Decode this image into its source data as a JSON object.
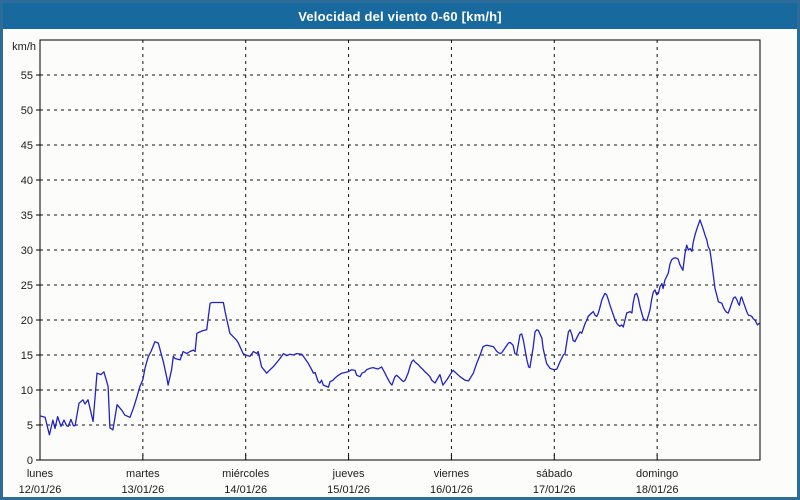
{
  "window": {
    "title": "Velocidad del viento 0-60 [km/h]"
  },
  "colors": {
    "titlebar_bg": "#17699e",
    "title_text": "#ffffff",
    "frame_border": "#2d6b98",
    "window_bg": "#fcfdfa",
    "grid_color": "#111111",
    "axis_color": "#000000",
    "label_color": "#1c1c1c",
    "line_color": "#2121c8"
  },
  "chart_data": {
    "type": "line",
    "title": "Velocidad del viento 0-60 [km/h]",
    "y_unit_label": "km/h",
    "ylim": [
      0,
      60
    ],
    "yticks": [
      0,
      5,
      10,
      15,
      20,
      25,
      30,
      35,
      40,
      45,
      50,
      55
    ],
    "grid": "dashed",
    "legend": "none",
    "x_axis": {
      "total_hours": 168,
      "day_span_hours": 24,
      "days": [
        {
          "name": "lunes",
          "date": "12/01/26"
        },
        {
          "name": "martes",
          "date": "13/01/26"
        },
        {
          "name": "miércoles",
          "date": "14/01/26"
        },
        {
          "name": "jueves",
          "date": "15/01/26"
        },
        {
          "name": "viernes",
          "date": "16/01/26"
        },
        {
          "name": "sábado",
          "date": "17/01/26"
        },
        {
          "name": "domingo",
          "date": "18/01/26"
        }
      ]
    },
    "series": [
      {
        "name": "Velocidad del viento",
        "unit": "km/h",
        "color": "#2121c8",
        "points": [
          [
            0,
            6.3
          ],
          [
            1.2,
            6.1
          ],
          [
            2.2,
            3.6
          ],
          [
            3,
            5.7
          ],
          [
            3.5,
            4.5
          ],
          [
            4.1,
            6.2
          ],
          [
            4.9,
            4.8
          ],
          [
            5.6,
            5.7
          ],
          [
            6.2,
            4.9
          ],
          [
            6.6,
            4.8
          ],
          [
            7.2,
            5.8
          ],
          [
            7.8,
            4.9
          ],
          [
            8.2,
            4.9
          ],
          [
            9.1,
            8.1
          ],
          [
            10,
            8.6
          ],
          [
            10.5,
            8
          ],
          [
            11.2,
            8.6
          ],
          [
            12.4,
            5.5
          ],
          [
            13.3,
            12.4
          ],
          [
            14.2,
            12.2
          ],
          [
            14.9,
            12.6
          ],
          [
            15.9,
            10.5
          ],
          [
            16.3,
            4.6
          ],
          [
            17,
            4.3
          ],
          [
            18,
            7.9
          ],
          [
            19.1,
            7.1
          ],
          [
            19.8,
            6.4
          ],
          [
            21,
            6.1
          ],
          [
            21.8,
            7.4
          ],
          [
            22.6,
            9
          ],
          [
            23.3,
            10.5
          ],
          [
            24,
            11.5
          ],
          [
            24.5,
            13.1
          ],
          [
            24.9,
            14
          ],
          [
            25.3,
            14.8
          ],
          [
            25.9,
            15.5
          ],
          [
            26.8,
            16.9
          ],
          [
            27.6,
            16.7
          ],
          [
            28.8,
            14
          ],
          [
            29.6,
            11.7
          ],
          [
            29.9,
            10.7
          ],
          [
            30.7,
            12.9
          ],
          [
            31.1,
            14.8
          ],
          [
            31.5,
            14.5
          ],
          [
            32.7,
            14.3
          ],
          [
            33.4,
            15.5
          ],
          [
            34.2,
            15.2
          ],
          [
            35,
            15.5
          ],
          [
            35.8,
            15.7
          ],
          [
            36.2,
            15.5
          ],
          [
            36.6,
            18.1
          ],
          [
            37.3,
            18.3
          ],
          [
            38.1,
            18.5
          ],
          [
            38.9,
            18.6
          ],
          [
            39.7,
            22.4
          ],
          [
            40.1,
            22.5
          ],
          [
            42.8,
            22.5
          ],
          [
            43.2,
            21.2
          ],
          [
            43.6,
            20
          ],
          [
            44.3,
            18.1
          ],
          [
            45.1,
            17.6
          ],
          [
            45.9,
            17.1
          ],
          [
            46.3,
            16.7
          ],
          [
            47.4,
            15.2
          ],
          [
            48,
            15
          ],
          [
            49,
            14.8
          ],
          [
            49.8,
            15.5
          ],
          [
            50.6,
            15.2
          ],
          [
            50.9,
            15.5
          ],
          [
            51.7,
            13.3
          ],
          [
            52.9,
            12.4
          ],
          [
            53.7,
            12.9
          ],
          [
            54.4,
            13.3
          ],
          [
            56,
            14.5
          ],
          [
            56.8,
            15.2
          ],
          [
            57.6,
            14.9
          ],
          [
            58.3,
            15.1
          ],
          [
            59.1,
            15
          ],
          [
            59.9,
            15.2
          ],
          [
            61.1,
            15.1
          ],
          [
            61.8,
            14.5
          ],
          [
            62.6,
            13.8
          ],
          [
            63.4,
            12.9
          ],
          [
            63.8,
            12.4
          ],
          [
            64.2,
            12.5
          ],
          [
            64.9,
            11.2
          ],
          [
            65.3,
            11
          ],
          [
            65.7,
            11.4
          ],
          [
            66.1,
            10.7
          ],
          [
            66.9,
            10.5
          ],
          [
            67.3,
            10.4
          ],
          [
            67.7,
            11.2
          ],
          [
            68.4,
            11.4
          ],
          [
            68.8,
            11.7
          ],
          [
            69.6,
            12.1
          ],
          [
            70.4,
            12.4
          ],
          [
            71.2,
            12.5
          ],
          [
            71.9,
            12.6
          ],
          [
            72.7,
            12.9
          ],
          [
            73.5,
            12.8
          ],
          [
            73.9,
            12.1
          ],
          [
            74.7,
            11.9
          ],
          [
            75.1,
            12.4
          ],
          [
            75.8,
            12.6
          ],
          [
            76.2,
            12.9
          ],
          [
            77,
            13.1
          ],
          [
            77.8,
            13.2
          ],
          [
            78.2,
            13.1
          ],
          [
            78.9,
            13
          ],
          [
            79.7,
            13.3
          ],
          [
            80.5,
            12.4
          ],
          [
            80.9,
            11.9
          ],
          [
            81.7,
            11
          ],
          [
            82.1,
            10.7
          ],
          [
            82.8,
            11.9
          ],
          [
            83.2,
            12.1
          ],
          [
            83.6,
            11.9
          ],
          [
            84.4,
            11.4
          ],
          [
            84.8,
            11.2
          ],
          [
            85.2,
            11.4
          ],
          [
            85.9,
            12.4
          ],
          [
            86.3,
            13.3
          ],
          [
            86.7,
            14
          ],
          [
            87.1,
            14.3
          ],
          [
            87.5,
            14
          ],
          [
            88.3,
            13.6
          ],
          [
            88.7,
            13.3
          ],
          [
            89.4,
            12.9
          ],
          [
            89.8,
            12.6
          ],
          [
            90.2,
            12.4
          ],
          [
            91,
            11.9
          ],
          [
            91.4,
            11.4
          ],
          [
            91.8,
            11.2
          ],
          [
            92.2,
            11
          ],
          [
            93,
            11.9
          ],
          [
            93.3,
            12.2
          ],
          [
            94,
            10.7
          ],
          [
            95,
            11.5
          ],
          [
            96.1,
            12.6
          ],
          [
            96.4,
            12.8
          ],
          [
            98,
            11.9
          ],
          [
            99.2,
            11.4
          ],
          [
            100,
            11.3
          ],
          [
            101.1,
            12.4
          ],
          [
            101.9,
            13.8
          ],
          [
            102.7,
            15
          ],
          [
            103.4,
            16.2
          ],
          [
            104.2,
            16.4
          ],
          [
            105.8,
            16.2
          ],
          [
            106.6,
            15.5
          ],
          [
            107.3,
            15.2
          ],
          [
            107.7,
            15.3
          ],
          [
            108.5,
            16
          ],
          [
            109.3,
            16.7
          ],
          [
            109.7,
            16.8
          ],
          [
            110.4,
            16.4
          ],
          [
            110.8,
            15.2
          ],
          [
            111.2,
            15.1
          ],
          [
            112,
            17.9
          ],
          [
            112.4,
            18
          ],
          [
            112.8,
            17.1
          ],
          [
            113.2,
            15.7
          ],
          [
            113.6,
            14.3
          ],
          [
            114,
            13.3
          ],
          [
            114.3,
            13.2
          ],
          [
            115.1,
            16.2
          ],
          [
            115.5,
            18.3
          ],
          [
            115.9,
            18.6
          ],
          [
            116.3,
            18.5
          ],
          [
            117.1,
            17.4
          ],
          [
            117.4,
            16
          ],
          [
            117.8,
            14.8
          ],
          [
            118.2,
            13.8
          ],
          [
            119,
            13.1
          ],
          [
            119.4,
            13
          ],
          [
            120,
            12.9
          ],
          [
            120.6,
            13
          ],
          [
            121.3,
            14
          ],
          [
            122.1,
            15
          ],
          [
            122.5,
            15.2
          ],
          [
            123.3,
            18.3
          ],
          [
            123.7,
            18.6
          ],
          [
            124.1,
            17.9
          ],
          [
            124.4,
            17.1
          ],
          [
            124.8,
            16.9
          ],
          [
            125.6,
            17.9
          ],
          [
            126,
            18.3
          ],
          [
            126.4,
            18.1
          ],
          [
            127.2,
            19.5
          ],
          [
            127.6,
            20
          ],
          [
            127.9,
            20.5
          ],
          [
            128.7,
            21
          ],
          [
            129.1,
            21.2
          ],
          [
            129.5,
            20.7
          ],
          [
            129.9,
            20.5
          ],
          [
            130.3,
            21
          ],
          [
            130.7,
            21.9
          ],
          [
            131.1,
            22.9
          ],
          [
            131.8,
            23.8
          ],
          [
            132.2,
            23.6
          ],
          [
            132.6,
            22.9
          ],
          [
            133,
            22.1
          ],
          [
            133.4,
            21.4
          ],
          [
            133.8,
            20.7
          ],
          [
            134.2,
            20
          ],
          [
            134.6,
            19.5
          ],
          [
            134.9,
            19.3
          ],
          [
            135.3,
            19.1
          ],
          [
            135.7,
            19.3
          ],
          [
            136.1,
            19
          ],
          [
            136.5,
            20
          ],
          [
            136.9,
            21
          ],
          [
            137.7,
            21.2
          ],
          [
            138.1,
            21
          ],
          [
            138.4,
            22.4
          ],
          [
            138.8,
            23.6
          ],
          [
            139.2,
            23.8
          ],
          [
            139.6,
            23.1
          ],
          [
            140,
            21.9
          ],
          [
            140.4,
            21
          ],
          [
            140.8,
            20.2
          ],
          [
            141.2,
            20
          ],
          [
            141.6,
            19.9
          ],
          [
            142.3,
            21.4
          ],
          [
            142.7,
            22.9
          ],
          [
            143.1,
            24
          ],
          [
            143.5,
            24.3
          ],
          [
            143.9,
            23.6
          ],
          [
            144.3,
            23.8
          ],
          [
            144.7,
            24.8
          ],
          [
            145.1,
            25.2
          ],
          [
            145.4,
            24.5
          ],
          [
            145.8,
            25.7
          ],
          [
            146.2,
            26.2
          ],
          [
            146.6,
            26.7
          ],
          [
            147,
            28
          ],
          [
            147.4,
            28.6
          ],
          [
            147.8,
            28.8
          ],
          [
            148.2,
            28.9
          ],
          [
            148.6,
            28.8
          ],
          [
            148.9,
            28.7
          ],
          [
            149.3,
            27.9
          ],
          [
            150,
            27.1
          ],
          [
            150.5,
            29.5
          ],
          [
            150.9,
            30.7
          ],
          [
            151.3,
            30
          ],
          [
            151.7,
            30.2
          ],
          [
            152.1,
            29.8
          ],
          [
            152.4,
            31
          ],
          [
            152.8,
            32.1
          ],
          [
            153.2,
            32.9
          ],
          [
            153.6,
            33.6
          ],
          [
            154,
            34.3
          ],
          [
            154.4,
            33.6
          ],
          [
            154.8,
            32.9
          ],
          [
            155.2,
            32.1
          ],
          [
            155.6,
            31.4
          ],
          [
            155.9,
            30.5
          ],
          [
            156.3,
            30
          ],
          [
            156.7,
            28.3
          ],
          [
            157.1,
            26.4
          ],
          [
            157.5,
            24.5
          ],
          [
            157.9,
            23.6
          ],
          [
            158.3,
            22.6
          ],
          [
            158.7,
            22.5
          ],
          [
            159.1,
            22.4
          ],
          [
            159.4,
            21.9
          ],
          [
            159.8,
            21.4
          ],
          [
            160.2,
            21.1
          ],
          [
            160.6,
            21
          ],
          [
            161,
            21.7
          ],
          [
            161.4,
            22.4
          ],
          [
            161.8,
            23.1
          ],
          [
            162.2,
            23.3
          ],
          [
            162.6,
            22.9
          ],
          [
            162.9,
            22.4
          ],
          [
            163.2,
            22.1
          ],
          [
            163.5,
            23.1
          ],
          [
            163.7,
            23.3
          ],
          [
            164.1,
            22.6
          ],
          [
            164.5,
            21.9
          ],
          [
            164.9,
            21.2
          ],
          [
            165.3,
            20.7
          ],
          [
            165.8,
            20.6
          ],
          [
            166.1,
            20.5
          ],
          [
            166.4,
            20.2
          ],
          [
            166.8,
            20
          ],
          [
            167,
            19.8
          ],
          [
            167.4,
            19.3
          ],
          [
            167.8,
            19.5
          ]
        ]
      }
    ]
  }
}
